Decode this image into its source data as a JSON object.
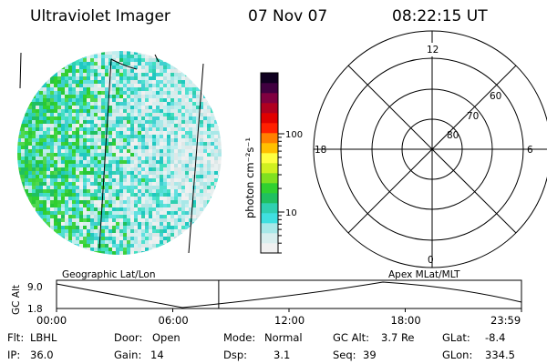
{
  "header": {
    "instrument": "Ultraviolet Imager",
    "date": "07 Nov 07",
    "time": "08:22:15 UT"
  },
  "colorbar": {
    "label": "photon cm⁻²s⁻¹",
    "ticks": [
      {
        "label": "100",
        "value": 100
      },
      {
        "label": "10",
        "value": 10
      }
    ],
    "colors": [
      "#f0f0f0",
      "#d8eeee",
      "#a8e8e8",
      "#40e0e0",
      "#30d0b0",
      "#20c060",
      "#30d030",
      "#80e020",
      "#d0f020",
      "#ffff40",
      "#ffc000",
      "#ff8000",
      "#ff2000",
      "#e00000",
      "#b00020",
      "#800040",
      "#400040",
      "#100020"
    ]
  },
  "polar_plot": {
    "mlt_labels": [
      {
        "label": "12",
        "position": "top"
      },
      {
        "label": "18",
        "position": "left"
      },
      {
        "label": "6",
        "position": "right"
      },
      {
        "label": "0",
        "position": "bottom"
      }
    ],
    "lat_labels": [
      "60",
      "70",
      "80"
    ]
  },
  "timeline": {
    "ylabel": "GC Alt",
    "y_ticks": [
      "9.0",
      "1.8"
    ],
    "x_ticks": [
      "00:00",
      "06:00",
      "12:00",
      "18:00",
      "23:59"
    ],
    "left_caption": "Geographic Lat/Lon",
    "right_caption": "Apex MLat/MLT",
    "current_time_fraction": 0.3488,
    "cursor_color": "#e00000"
  },
  "status": {
    "filter_label": "Flt:",
    "filter_value": "LBHL",
    "ip_label": "IP:",
    "ip_value": "36.0",
    "door_label": "Door:",
    "door_value": "Open",
    "gain_label": "Gain:",
    "gain_value": "14",
    "mode_label": "Mode:",
    "mode_value": "Normal",
    "dsp_label": "Dsp:",
    "dsp_value": "3.1",
    "gcalt_label": "GC Alt:",
    "gcalt_value": "3.7 Re",
    "seq_label": "Seq:",
    "seq_value": "39",
    "glat_label": "GLat:",
    "glat_value": "-8.4",
    "glon_label": "GLon:",
    "glon_value": "334.5"
  }
}
